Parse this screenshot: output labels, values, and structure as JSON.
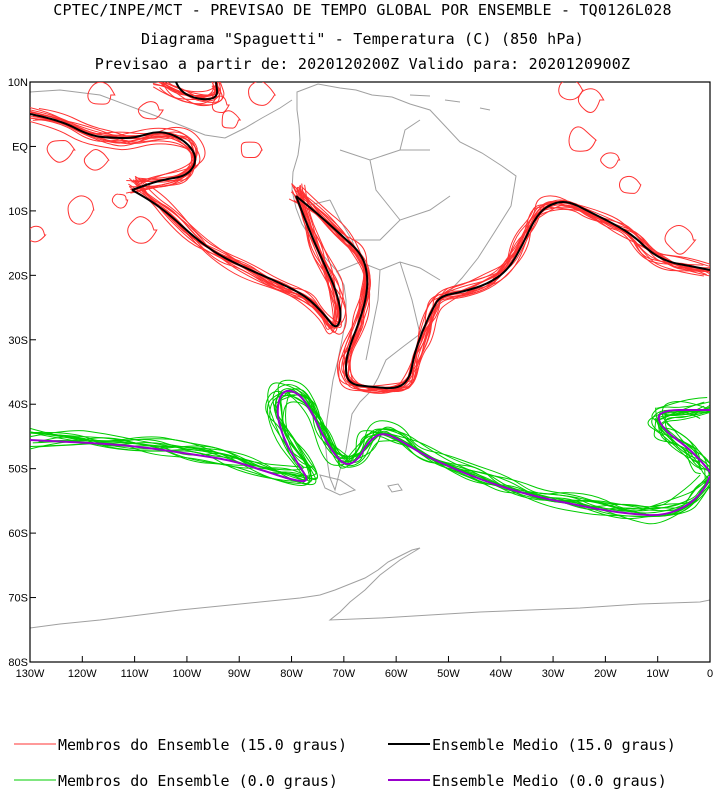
{
  "title": {
    "line1": "CPTEC/INPE/MCT - PREVISAO DE TEMPO GLOBAL POR ENSEMBLE - TQ0126L028",
    "line2": "Diagrama \"Spaguetti\" - Temperatura (C) (850 hPa)",
    "line3": "Previsao a partir de: 2020120200Z  Valido para: 2020120900Z"
  },
  "map": {
    "lat_labels": [
      "10N",
      "EQ",
      "10S",
      "20S",
      "30S",
      "40S",
      "50S",
      "60S",
      "70S",
      "80S"
    ],
    "lon_labels": [
      "130W",
      "120W",
      "110W",
      "100W",
      "90W",
      "80W",
      "70W",
      "60W",
      "50W",
      "40W",
      "30W",
      "20W",
      "10W",
      "0"
    ],
    "lon_range": [
      -130,
      0
    ],
    "lat_range": [
      -80,
      10
    ]
  },
  "legend": {
    "items": [
      {
        "label": "Membros do Ensemble (15.0 graus)",
        "color": "#ff3333"
      },
      {
        "label": "Ensemble Medio (15.0 graus)",
        "color": "#000000"
      },
      {
        "label": "Membros do Ensemble (0.0 graus)",
        "color": "#00cc00"
      },
      {
        "label": "Ensemble Medio (0.0 graus)",
        "color": "#9900cc"
      }
    ]
  },
  "colors": {
    "member15": "#ff3333",
    "mean15": "#000000",
    "member0": "#00cc00",
    "mean0": "#9900cc",
    "coast": "#a0a0a0"
  }
}
